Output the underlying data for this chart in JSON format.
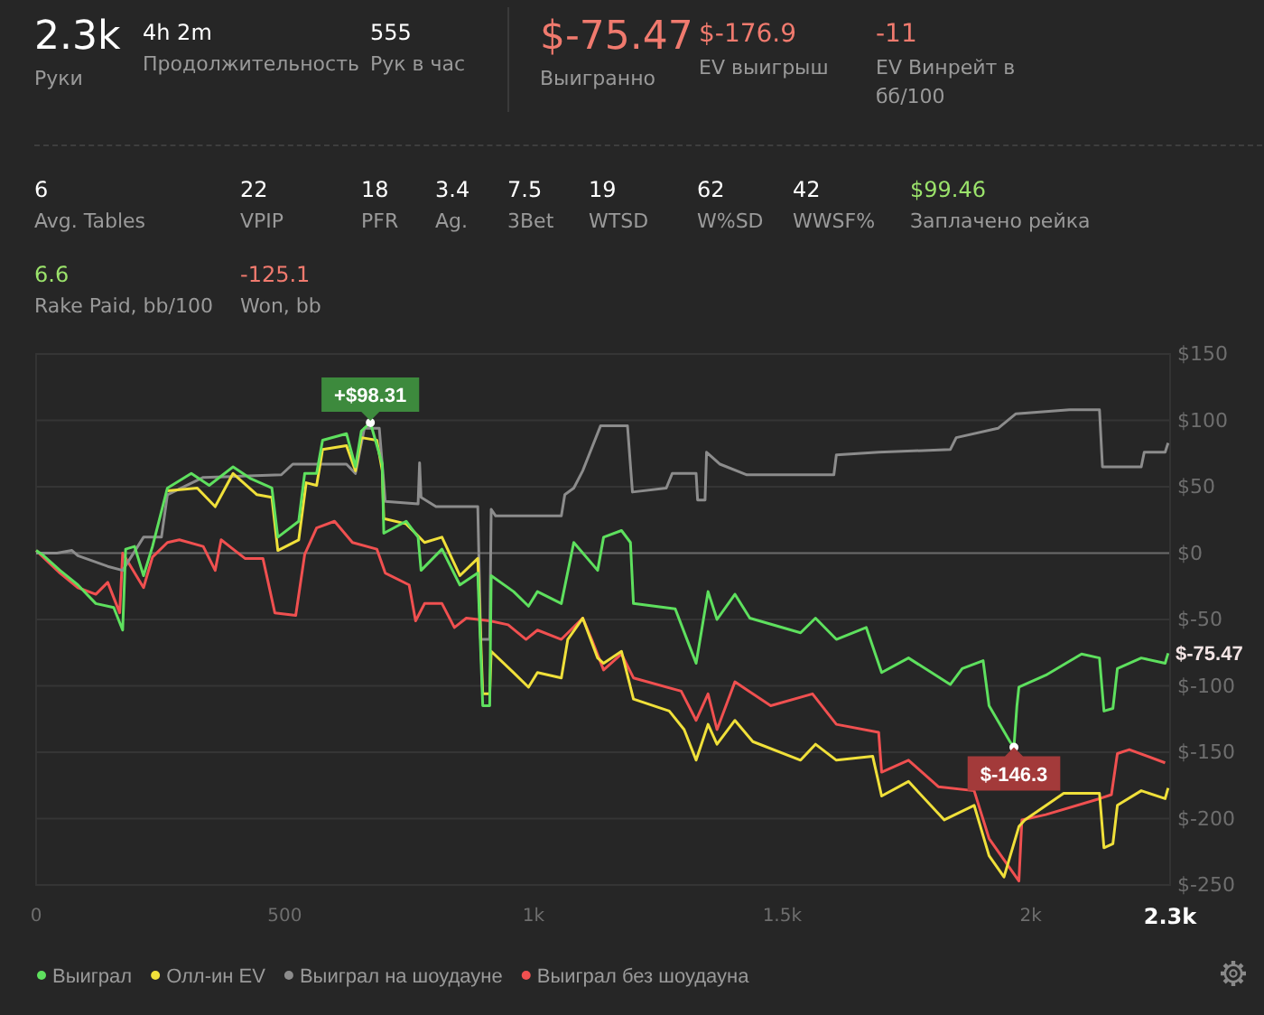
{
  "chart_data": [
    {
      "type": "other",
      "annotations": [
        "2.3k",
        "Руки",
        "4h 2m",
        "Продолжительность",
        "555",
        "Рук в час",
        "$-75.47",
        "Выигранно",
        "$-176.9",
        "EV выигрыш",
        "-11",
        "EV Винрейт в бб/100",
        "6",
        "Avg. Tables",
        "22",
        "VPIP",
        "18",
        "PFR",
        "3.4",
        "Ag.",
        "7.5",
        "3Bet",
        "19",
        "WTSD",
        "62",
        "W%SD",
        "42",
        "WWSF%",
        "$99.46",
        "Заплачено рейка",
        "6.6",
        "Rake Paid, bb/100",
        "-125.1",
        "Won, bb"
      ],
      "colors": [
        "#ffffff",
        "#9a9a9a",
        "#ffffff",
        "#9a9a9a",
        "#ffffff",
        "#9a9a9a",
        "#f07a6e",
        "#9a9a9a",
        "#f07a6e",
        "#9a9a9a",
        "#f07a6e",
        "#9a9a9a",
        "#ffffff",
        "#9a9a9a",
        "#ffffff",
        "#9a9a9a",
        "#ffffff",
        "#9a9a9a",
        "#ffffff",
        "#9a9a9a",
        "#ffffff",
        "#9a9a9a",
        "#ffffff",
        "#9a9a9a",
        "#ffffff",
        "#9a9a9a",
        "#ffffff",
        "#9a9a9a",
        "#9be36b",
        "#9a9a9a",
        "#9be36b",
        "#9a9a9a",
        "#f07a6e",
        "#9a9a9a"
      ]
    },
    {
      "type": "line",
      "xlim": [
        0,
        2280
      ],
      "ylim": [
        -250,
        150
      ],
      "xticks": [
        0,
        500,
        {
          "value": 1000,
          "label": "1k"
        },
        {
          "value": 1500,
          "label": "1.5k"
        },
        {
          "value": 2000,
          "label": "2k"
        },
        {
          "value": 2280,
          "label": "2.3k"
        }
      ],
      "yticks": [
        {
          "value": -250,
          "label": "$-250"
        },
        {
          "value": -200,
          "label": "$-200"
        },
        {
          "value": -150,
          "label": "$-150"
        },
        {
          "value": -100,
          "label": "$-100"
        },
        {
          "value": -50,
          "label": "$-50"
        },
        {
          "value": 0,
          "label": "$0"
        },
        {
          "value": 50,
          "label": "$50"
        },
        {
          "value": 100,
          "label": "$100"
        },
        {
          "value": 150,
          "label": "$150"
        }
      ],
      "grid": "y",
      "legend": "bottom left",
      "marker": "none",
      "line_style": "solid",
      "ref_lines": [
        {
          "axis": "y",
          "value": 0,
          "color": "#6a6a6a"
        }
      ],
      "annotations": [
        {
          "text": "+$98.31",
          "x": 672,
          "y": 98.31
        },
        {
          "text": "$-146.3",
          "x": 1966,
          "y": -146.3
        },
        {
          "text": "$-75.47",
          "x": 2276,
          "y": -75.47
        }
      ],
      "series": [
        {
          "name": "Выиграл",
          "color": "#5ee05e",
          "x": [
            0,
            12,
            48,
            84,
            120,
            156,
            174,
            180,
            198,
            216,
            234,
            264,
            312,
            348,
            396,
            432,
            474,
            486,
            528,
            540,
            564,
            576,
            624,
            642,
            654,
            672,
            696,
            699,
            744,
            768,
            774,
            816,
            852,
            888,
            898,
            912,
            915,
            960,
            990,
            1008,
            1056,
            1081,
            1129,
            1141,
            1177,
            1195,
            1201,
            1285,
            1327,
            1351,
            1369,
            1405,
            1435,
            1537,
            1567,
            1609,
            1669,
            1700,
            1754,
            1838,
            1862,
            1904,
            1916,
            1958,
            1966,
            1972,
            1976,
            2030,
            2102,
            2138,
            2147,
            2165,
            2174,
            2222,
            2270,
            2276
          ],
          "values": [
            2,
            -1,
            -13,
            -24,
            -38,
            -41,
            -58,
            3,
            5,
            -17,
            5,
            49,
            60,
            51,
            65,
            56,
            49,
            12,
            24,
            60,
            60,
            85,
            90,
            65,
            92,
            98.31,
            67,
            15,
            24,
            12,
            -13,
            3,
            -24,
            -15,
            -115,
            -115,
            -17,
            -29,
            -40,
            -29,
            -38,
            8,
            -13,
            12,
            17,
            8,
            -38,
            -42,
            -83,
            -29,
            -50,
            -31,
            -49,
            -60,
            -49,
            -65,
            -56,
            -90,
            -79,
            -99,
            -87,
            -81,
            -115,
            -142,
            -146.3,
            -115,
            -101,
            -92,
            -76,
            -79,
            -119,
            -117,
            -87,
            -79,
            -83,
            -75.47
          ]
        },
        {
          "name": "Олл-ин EV",
          "color": "#f0e03a",
          "x": [
            264,
            324,
            360,
            396,
            444,
            474,
            486,
            528,
            543,
            564,
            576,
            624,
            642,
            654,
            685,
            696,
            699,
            744,
            781,
            816,
            852,
            888,
            898,
            912,
            915,
            960,
            990,
            1008,
            1056,
            1069,
            1099,
            1129,
            1141,
            1177,
            1201,
            1273,
            1303,
            1327,
            1351,
            1369,
            1405,
            1441,
            1537,
            1567,
            1609,
            1682,
            1700,
            1754,
            1826,
            1886,
            1916,
            1946,
            1976,
            1988,
            2066,
            2138,
            2147,
            2165,
            2174,
            2222,
            2270,
            2276
          ],
          "values": [
            47,
            49,
            35,
            60,
            44,
            42,
            2,
            10,
            53,
            51,
            78,
            81,
            62,
            87,
            85,
            62,
            26,
            22,
            8,
            12,
            -17,
            -4,
            -106,
            -106,
            -74,
            -90,
            -101,
            -90,
            -94,
            -65,
            -49,
            -79,
            -83,
            -74,
            -110,
            -119,
            -133,
            -156,
            -129,
            -144,
            -126,
            -142,
            -156,
            -144,
            -156,
            -153,
            -183,
            -172,
            -201,
            -190,
            -228,
            -244,
            -206,
            -201,
            -181,
            -181,
            -222,
            -219,
            -190,
            -179,
            -185,
            -176.9
          ]
        },
        {
          "name": "Выиграл на шоудауне",
          "color": "#8c8c8c",
          "x": [
            0,
            42,
            72,
            84,
            144,
            174,
            216,
            252,
            264,
            336,
            493,
            516,
            624,
            642,
            660,
            690,
            702,
            768,
            771,
            774,
            804,
            888,
            894,
            912,
            915,
            924,
            1056,
            1063,
            1081,
            1099,
            1135,
            1189,
            1199,
            1267,
            1279,
            1327,
            1330,
            1345,
            1348,
            1375,
            1429,
            1604,
            1609,
            1694,
            1838,
            1850,
            1934,
            1970,
            2078,
            2138,
            2144,
            2222,
            2228,
            2270,
            2276
          ],
          "values": [
            0,
            0,
            2,
            -2,
            -10,
            -13,
            12,
            12,
            44,
            57,
            59,
            67,
            67,
            60,
            94,
            94,
            39,
            37,
            68,
            42,
            35,
            35,
            -65,
            -65,
            33,
            28,
            28,
            44,
            49,
            62,
            96,
            96,
            46,
            49,
            60,
            60,
            40,
            40,
            76,
            67,
            59,
            59,
            74,
            76,
            78,
            87,
            94,
            105,
            108,
            108,
            65,
            65,
            76,
            76,
            83
          ]
        },
        {
          "name": "Выиграл без шоудауна",
          "color": "#f05050",
          "x": [
            0,
            48,
            84,
            120,
            144,
            168,
            174,
            216,
            234,
            264,
            288,
            336,
            360,
            372,
            420,
            456,
            480,
            522,
            540,
            564,
            600,
            636,
            685,
            702,
            750,
            763,
            781,
            816,
            841,
            865,
            912,
            949,
            985,
            1008,
            1056,
            1099,
            1117,
            1141,
            1177,
            1201,
            1297,
            1327,
            1351,
            1369,
            1405,
            1477,
            1561,
            1609,
            1694,
            1700,
            1754,
            1814,
            1886,
            1916,
            1976,
            1982,
            2030,
            2138,
            2162,
            2174,
            2198,
            2270
          ],
          "values": [
            2,
            -15,
            -26,
            -31,
            -22,
            -45,
            0,
            -26,
            -3,
            8,
            10,
            5,
            -13,
            10,
            -4,
            -4,
            -45,
            -47,
            -1,
            19,
            24,
            8,
            3,
            -15,
            -24,
            -51,
            -38,
            -38,
            -56,
            -49,
            -51,
            -54,
            -65,
            -58,
            -65,
            -49,
            -65,
            -88,
            -76,
            -94,
            -104,
            -126,
            -106,
            -133,
            -97,
            -115,
            -106,
            -129,
            -135,
            -165,
            -156,
            -176,
            -179,
            -215,
            -247,
            -201,
            -197,
            -185,
            -182,
            -151,
            -148,
            -158
          ]
        }
      ]
    }
  ]
}
